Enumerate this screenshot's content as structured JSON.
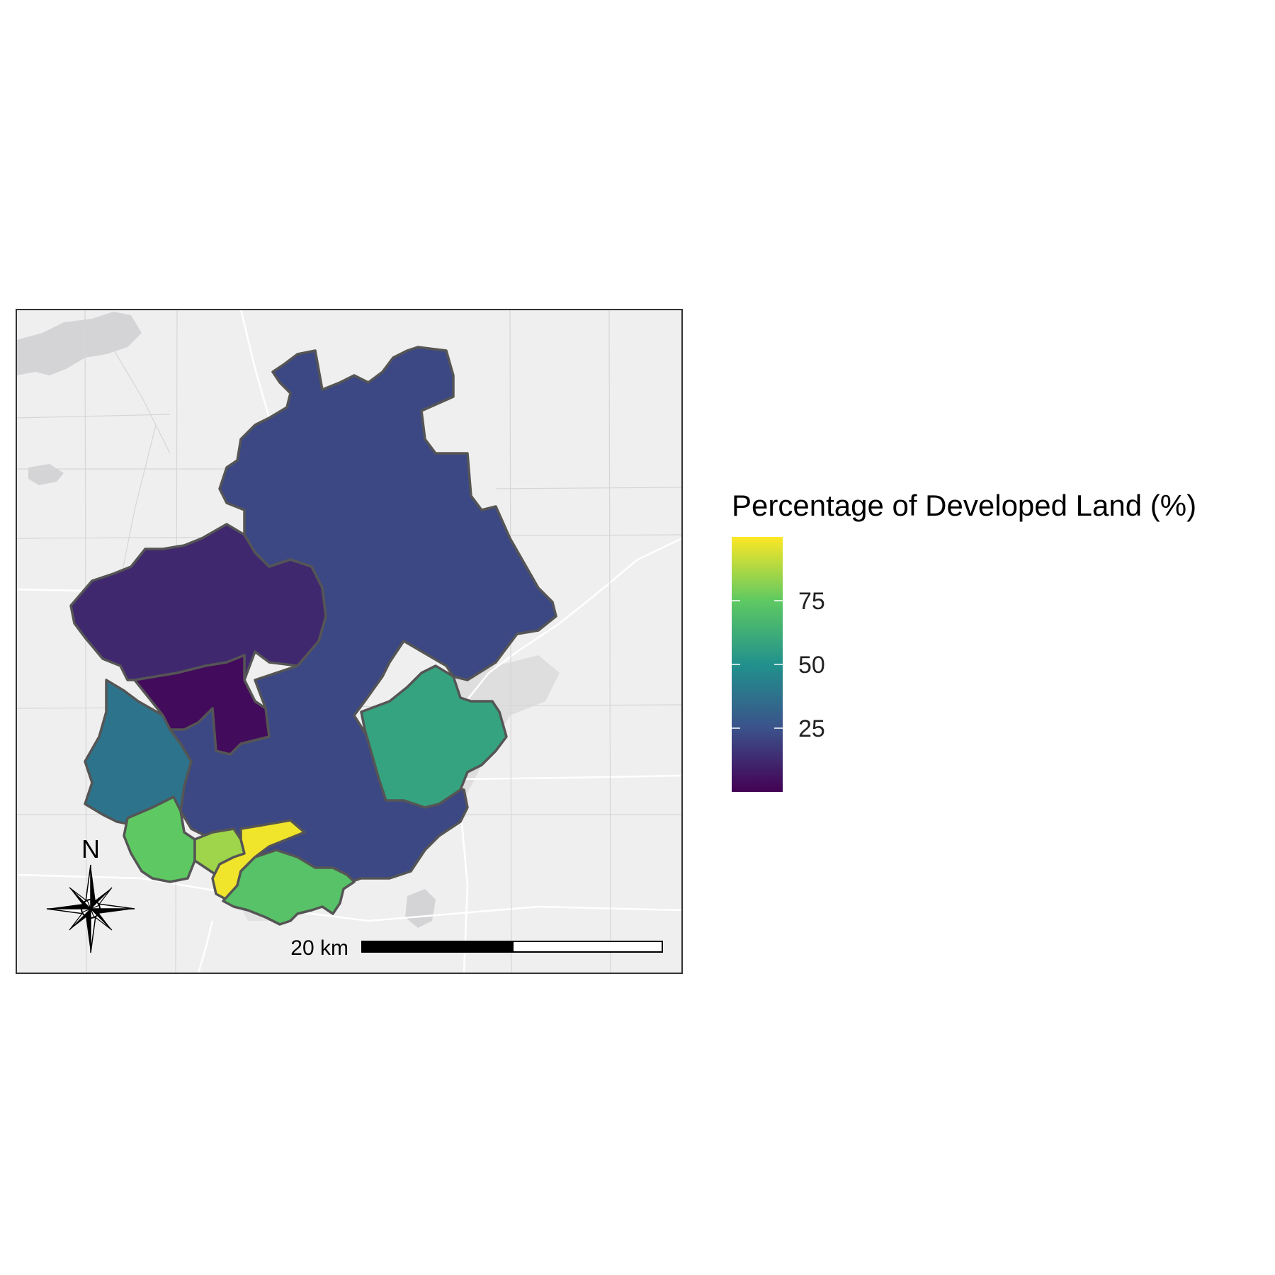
{
  "map": {
    "region_fill_values": [
      {
        "id": "north-central",
        "value": 22
      },
      {
        "id": "west",
        "value": 12
      },
      {
        "id": "west-inner",
        "value": 3
      },
      {
        "id": "southwest",
        "value": 38
      },
      {
        "id": "east",
        "value": 58
      },
      {
        "id": "south-west-lobe",
        "value": 75
      },
      {
        "id": "south-small",
        "value": 85
      },
      {
        "id": "south-yellow",
        "value": 98
      },
      {
        "id": "south-east-lobe",
        "value": 72
      }
    ],
    "colors": {
      "background": "#efefef",
      "frame": "#333333",
      "region_outline": "#555555"
    }
  },
  "legend": {
    "title": "Percentage of Developed Land (%)",
    "min": 0,
    "max": 100,
    "ticks": [
      {
        "value": 25,
        "label": "25"
      },
      {
        "value": 50,
        "label": "50"
      },
      {
        "value": 75,
        "label": "75"
      }
    ],
    "colors": [
      "#440154",
      "#3b528b",
      "#21918c",
      "#5ec962",
      "#fde725"
    ]
  },
  "scale_bar": {
    "label": "20 km"
  },
  "north_arrow": {
    "label": "N"
  }
}
